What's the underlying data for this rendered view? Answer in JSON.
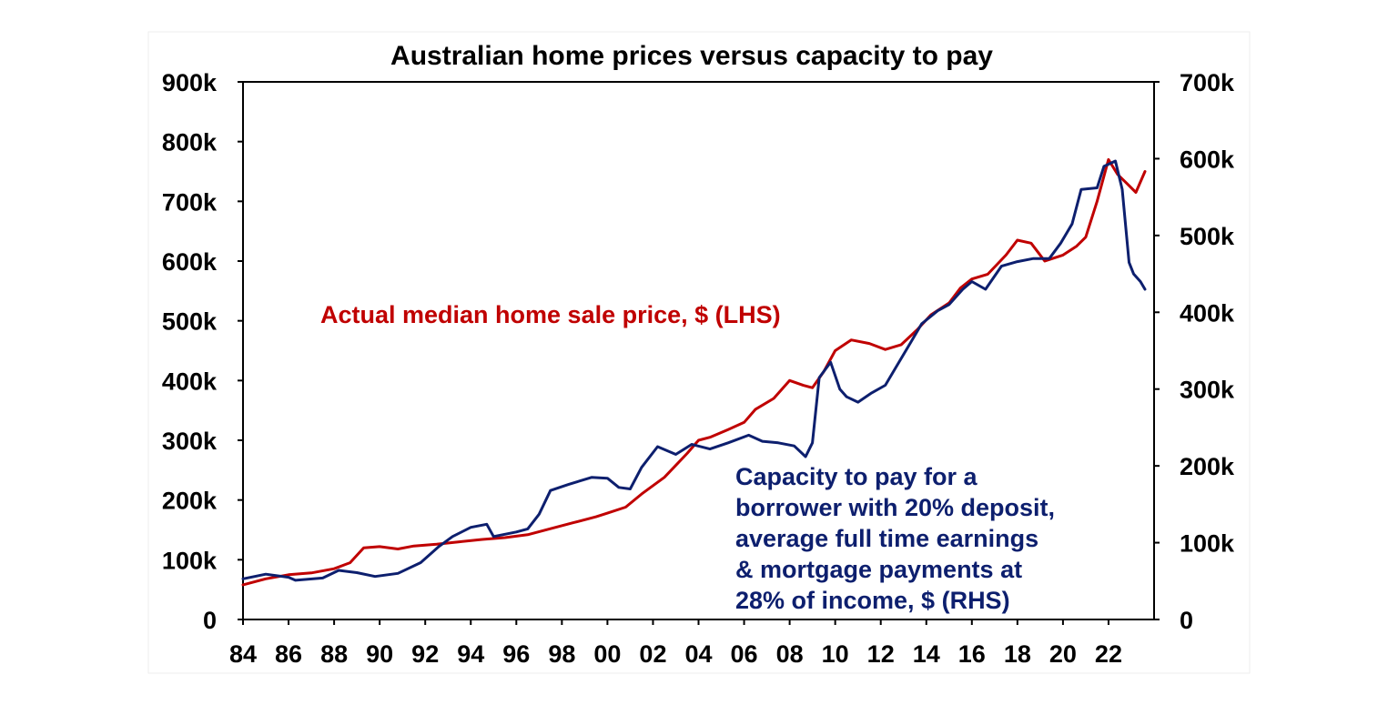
{
  "chart_data": {
    "type": "line",
    "title": "Australian home prices versus capacity to pay",
    "xlabel": "",
    "ylabel": "",
    "x_tick_labels": [
      "84",
      "86",
      "88",
      "90",
      "92",
      "94",
      "96",
      "98",
      "00",
      "02",
      "04",
      "06",
      "08",
      "10",
      "12",
      "14",
      "16",
      "18",
      "20",
      "22"
    ],
    "x_range": [
      1984,
      2024
    ],
    "y_left": {
      "ylim": [
        0,
        900000
      ],
      "tick_labels": [
        "0",
        "100k",
        "200k",
        "300k",
        "400k",
        "500k",
        "600k",
        "700k",
        "800k",
        "900k"
      ]
    },
    "y_right": {
      "ylim": [
        0,
        700000
      ],
      "tick_labels": [
        "0",
        "100k",
        "200k",
        "300k",
        "400k",
        "500k",
        "600k",
        "700k"
      ]
    },
    "grid": false,
    "legend": "none",
    "series": [
      {
        "key": "price",
        "name": "Actual median home sale price, $ (LHS)",
        "axis": "left",
        "color": "#c00000",
        "points": [
          [
            1984.0,
            58000
          ],
          [
            1985.0,
            68000
          ],
          [
            1986.0,
            75000
          ],
          [
            1987.0,
            78000
          ],
          [
            1988.0,
            85000
          ],
          [
            1988.7,
            95000
          ],
          [
            1989.3,
            120000
          ],
          [
            1990.0,
            122000
          ],
          [
            1990.8,
            118000
          ],
          [
            1991.5,
            123000
          ],
          [
            1992.5,
            126000
          ],
          [
            1993.5,
            130000
          ],
          [
            1994.5,
            134000
          ],
          [
            1995.5,
            137000
          ],
          [
            1996.5,
            142000
          ],
          [
            1997.5,
            152000
          ],
          [
            1998.5,
            162000
          ],
          [
            1999.5,
            172000
          ],
          [
            2000.0,
            178000
          ],
          [
            2000.8,
            188000
          ],
          [
            2001.5,
            210000
          ],
          [
            2002.5,
            238000
          ],
          [
            2003.5,
            278000
          ],
          [
            2004.0,
            300000
          ],
          [
            2004.5,
            305000
          ],
          [
            2005.3,
            318000
          ],
          [
            2006.0,
            330000
          ],
          [
            2006.5,
            352000
          ],
          [
            2007.3,
            370000
          ],
          [
            2008.0,
            400000
          ],
          [
            2008.6,
            392000
          ],
          [
            2009.0,
            388000
          ],
          [
            2009.5,
            415000
          ],
          [
            2010.0,
            450000
          ],
          [
            2010.7,
            468000
          ],
          [
            2011.5,
            462000
          ],
          [
            2012.2,
            452000
          ],
          [
            2012.9,
            460000
          ],
          [
            2013.6,
            485000
          ],
          [
            2014.2,
            510000
          ],
          [
            2015.0,
            530000
          ],
          [
            2015.5,
            555000
          ],
          [
            2016.0,
            570000
          ],
          [
            2016.7,
            578000
          ],
          [
            2017.5,
            610000
          ],
          [
            2018.0,
            635000
          ],
          [
            2018.6,
            630000
          ],
          [
            2019.2,
            600000
          ],
          [
            2019.6,
            605000
          ],
          [
            2020.0,
            610000
          ],
          [
            2020.6,
            625000
          ],
          [
            2021.0,
            640000
          ],
          [
            2021.5,
            700000
          ],
          [
            2022.0,
            770000
          ],
          [
            2022.4,
            745000
          ],
          [
            2022.8,
            730000
          ],
          [
            2023.2,
            715000
          ],
          [
            2023.6,
            750000
          ]
        ]
      },
      {
        "key": "capacity",
        "name": "Capacity to pay for a borrower with 20% deposit, average full time earnings & mortgage payments at 28% of income, $ (RHS)",
        "label_lines": [
          "Capacity to pay for a",
          "borrower with 20% deposit,",
          "average full time earnings",
          "& mortgage payments at",
          "28% of income, $ (RHS)"
        ],
        "axis": "right",
        "color": "#0d1f6e",
        "points": [
          [
            1984.0,
            53000
          ],
          [
            1985.0,
            59000
          ],
          [
            1986.0,
            55000
          ],
          [
            1986.3,
            51000
          ],
          [
            1987.5,
            54000
          ],
          [
            1988.2,
            64000
          ],
          [
            1989.0,
            61000
          ],
          [
            1989.8,
            56000
          ],
          [
            1990.8,
            60000
          ],
          [
            1991.8,
            74000
          ],
          [
            1992.6,
            95000
          ],
          [
            1993.2,
            108000
          ],
          [
            1994.0,
            120000
          ],
          [
            1994.7,
            124000
          ],
          [
            1995.0,
            108000
          ],
          [
            1996.0,
            114000
          ],
          [
            1996.5,
            118000
          ],
          [
            1997.0,
            137000
          ],
          [
            1997.5,
            168000
          ],
          [
            1998.3,
            176000
          ],
          [
            1999.3,
            185000
          ],
          [
            2000.0,
            184000
          ],
          [
            2000.5,
            172000
          ],
          [
            2001.0,
            170000
          ],
          [
            2001.5,
            198000
          ],
          [
            2002.2,
            225000
          ],
          [
            2003.0,
            215000
          ],
          [
            2003.7,
            228000
          ],
          [
            2004.5,
            222000
          ],
          [
            2005.3,
            230000
          ],
          [
            2006.2,
            240000
          ],
          [
            2006.8,
            232000
          ],
          [
            2007.5,
            230000
          ],
          [
            2008.2,
            226000
          ],
          [
            2008.7,
            212000
          ],
          [
            2009.0,
            230000
          ],
          [
            2009.3,
            315000
          ],
          [
            2009.8,
            335000
          ],
          [
            2010.2,
            300000
          ],
          [
            2010.5,
            290000
          ],
          [
            2011.0,
            283000
          ],
          [
            2011.6,
            295000
          ],
          [
            2012.2,
            305000
          ],
          [
            2012.7,
            330000
          ],
          [
            2013.3,
            360000
          ],
          [
            2013.8,
            385000
          ],
          [
            2014.5,
            402000
          ],
          [
            2015.0,
            410000
          ],
          [
            2015.6,
            430000
          ],
          [
            2016.0,
            440000
          ],
          [
            2016.6,
            430000
          ],
          [
            2017.3,
            460000
          ],
          [
            2018.0,
            466000
          ],
          [
            2018.7,
            470000
          ],
          [
            2019.4,
            470000
          ],
          [
            2019.9,
            490000
          ],
          [
            2020.4,
            515000
          ],
          [
            2020.8,
            560000
          ],
          [
            2021.5,
            562000
          ],
          [
            2021.8,
            590000
          ],
          [
            2022.3,
            597000
          ],
          [
            2022.6,
            560000
          ],
          [
            2022.9,
            465000
          ],
          [
            2023.1,
            450000
          ],
          [
            2023.4,
            440000
          ],
          [
            2023.6,
            430000
          ]
        ]
      }
    ]
  }
}
